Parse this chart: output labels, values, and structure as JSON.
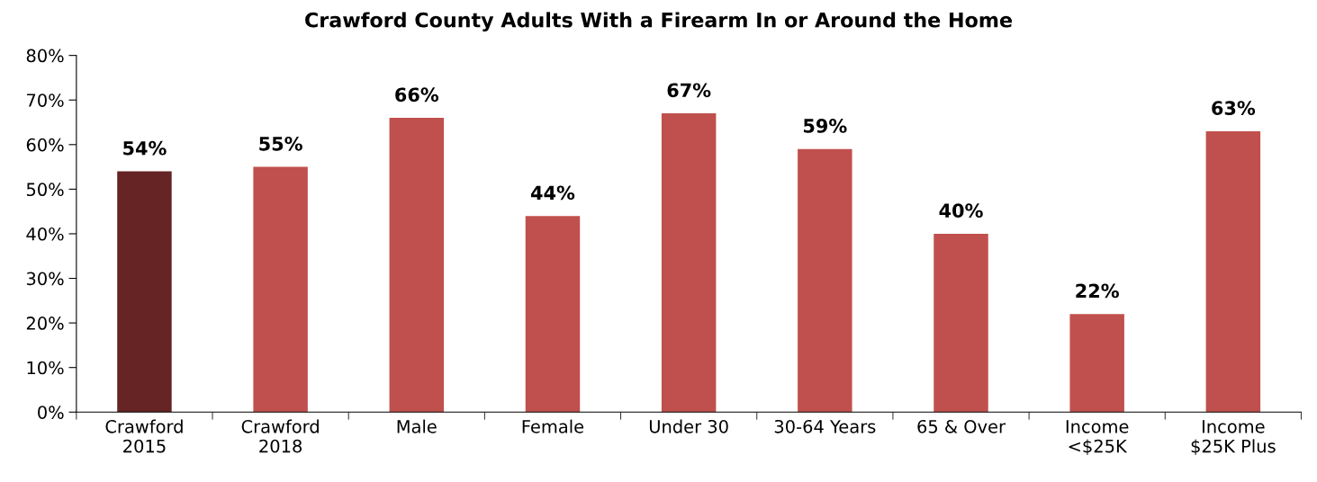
{
  "chart_data": {
    "type": "bar",
    "title": "Crawford County Adults With a Firearm In or Around the Home",
    "categories": [
      "Crawford\n2015",
      "Crawford\n2018",
      "Male",
      "Female",
      "Under 30",
      "30-64 Years",
      "65 & Over",
      "Income\n<$25K",
      "Income\n$25K Plus"
    ],
    "values": [
      54,
      55,
      66,
      44,
      67,
      59,
      40,
      22,
      63
    ],
    "colors": [
      "#662424",
      "#c0504d",
      "#c0504d",
      "#c0504d",
      "#c0504d",
      "#c0504d",
      "#c0504d",
      "#c0504d",
      "#c0504d"
    ],
    "value_labels": [
      "54%",
      "55%",
      "66%",
      "44%",
      "67%",
      "59%",
      "40%",
      "22%",
      "63%"
    ],
    "ylim": [
      0,
      80
    ],
    "yticks": [
      {
        "value": 0,
        "label": "0%"
      },
      {
        "value": 10,
        "label": "10%"
      },
      {
        "value": 20,
        "label": "20%"
      },
      {
        "value": 30,
        "label": "30%"
      },
      {
        "value": 40,
        "label": "40%"
      },
      {
        "value": 50,
        "label": "50%"
      },
      {
        "value": 60,
        "label": "60%"
      },
      {
        "value": 70,
        "label": "70%"
      },
      {
        "value": 80,
        "label": "80%"
      }
    ],
    "grid": false,
    "legend": false
  }
}
